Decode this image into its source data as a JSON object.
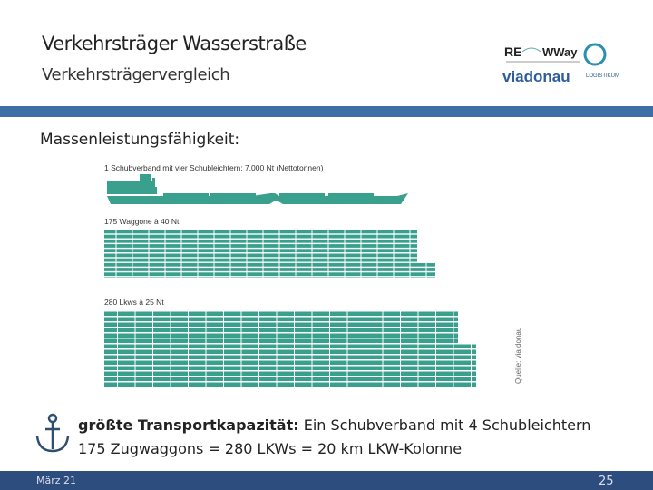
{
  "header": {
    "title": "Verkehrsträger Wasserstraße",
    "subtitle": "Verkehrsträgervergleich"
  },
  "logos": {
    "rewway_left": "RE",
    "rewway_right": "WWay",
    "viadonau": "viadonau",
    "logistikum": "LOGISTIKUM"
  },
  "heading": "Massenleistungsfähigkeit:",
  "figure": {
    "ship_label": "1 Schubverband mit vier Schubleichtern: 7.000 Nt (Nettotonnen)",
    "wagon_label": "175 Waggone à 40 Nt",
    "truck_label": "280 Lkws à 25 Nt",
    "source": "Quelle: via donau"
  },
  "summary": {
    "bold": "größte Transportkapazität:",
    "line1": "Ein Schubverband mit 4 Schubleichtern",
    "line2": "175 Zugwaggons = 280 LKWs = 20 km LKW-Kolonne"
  },
  "footer": {
    "date": "März 21",
    "page": "25"
  }
}
